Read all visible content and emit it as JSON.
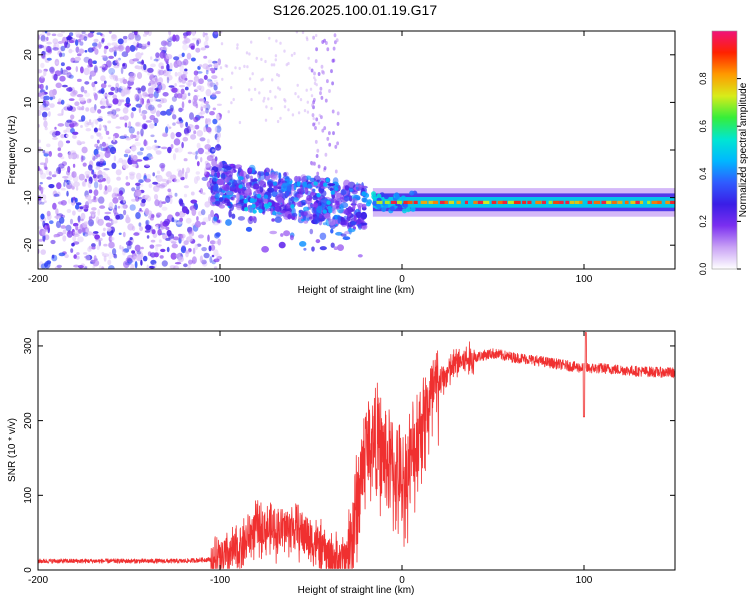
{
  "figure": {
    "title": "S126.2025.100.01.19.G17"
  },
  "chart_data": [
    {
      "type": "heatmap",
      "xlabel": "Height of straight line (km)",
      "ylabel": "Frequency (Hz)",
      "xlim": [
        -200,
        150
      ],
      "ylim": [
        -25,
        25
      ],
      "xticks": [
        -200,
        -100,
        0,
        100
      ],
      "xtick_labels": [
        "-200",
        "-100",
        "0",
        "100"
      ],
      "yticks": [
        -20,
        -10,
        0,
        10,
        20
      ],
      "ytick_labels": [
        "-20",
        "-10",
        "0",
        "10",
        "20"
      ],
      "colorbar": {
        "label": "Normalized spectral amplitude",
        "range": [
          0,
          1
        ],
        "ticks": [
          0,
          0.2,
          0.4,
          0.6,
          0.8
        ],
        "tick_labels": [
          "0.0",
          "0.2",
          "0.4",
          "0.6",
          "0.8"
        ],
        "colormap": [
          "#ffffff",
          "#c9a2f5",
          "#7b2ff0",
          "#3a1ee6",
          "#2f5cff",
          "#00b8ff",
          "#00e6d2",
          "#36ee3a",
          "#d8ec1a",
          "#ff9a00",
          "#ff2200",
          "#f0127a"
        ]
      },
      "features": [
        {
          "region": "scattered noise",
          "x": [
            -200,
            -100
          ],
          "y": [
            -25,
            25
          ],
          "amplitude": 0.15
        },
        {
          "region": "transition cluster",
          "x": [
            -105,
            -20
          ],
          "y": [
            -20,
            -3
          ],
          "amplitude": 0.3
        },
        {
          "region": "steady tone",
          "x": [
            -20,
            150
          ],
          "y_center": -11,
          "width_hz": 2.5,
          "peak_amplitude": 0.95
        }
      ]
    },
    {
      "type": "line",
      "xlabel": "Height of straight line (km)",
      "ylabel": "SNR (10 * v/v)",
      "xlim": [
        -200,
        150
      ],
      "ylim": [
        0,
        320
      ],
      "xticks": [
        -200,
        -100,
        0,
        100
      ],
      "xtick_labels": [
        "-200",
        "-100",
        "0",
        "100"
      ],
      "yticks": [
        0,
        100,
        200,
        300
      ],
      "ytick_labels": [
        "0",
        "100",
        "200",
        "300"
      ],
      "color": "#f03030",
      "series": [
        {
          "x": [
            -200,
            -180,
            -160,
            -140,
            -120,
            -100,
            -90,
            -80,
            -70,
            -60,
            -50,
            -40,
            -35,
            -30,
            -25,
            -20,
            -15,
            -10,
            -5,
            0,
            5,
            10,
            15,
            20,
            25,
            30,
            40,
            50,
            60,
            70,
            80,
            90,
            100,
            110,
            120,
            130,
            140,
            150
          ],
          "values": [
            12,
            12,
            12,
            12,
            12,
            15,
            30,
            60,
            55,
            60,
            45,
            20,
            15,
            20,
            90,
            170,
            180,
            160,
            140,
            120,
            150,
            200,
            225,
            250,
            265,
            280,
            285,
            290,
            285,
            282,
            278,
            274,
            270,
            270,
            268,
            266,
            265,
            264
          ]
        }
      ]
    }
  ]
}
